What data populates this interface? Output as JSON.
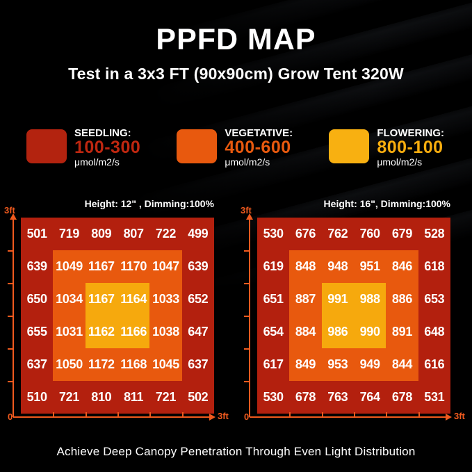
{
  "header": {
    "title": "PPFD MAP",
    "subtitle": "Test in a 3x3 FT (90x90cm) Grow Tent 320W"
  },
  "legend": {
    "items": [
      {
        "label": "SEEDLING:",
        "range": "100-300",
        "unit": "μmol/m2/s",
        "color": "#b3230f",
        "range_color": "#bf2710"
      },
      {
        "label": "VEGETATIVE:",
        "range": "400-600",
        "unit": "μmol/m2/s",
        "color": "#e8590e",
        "range_color": "#e8590e"
      },
      {
        "label": "FLOWERING:",
        "range": "800-100",
        "unit": "μmol/m2/s",
        "color": "#f8b011",
        "range_color": "#f8ad0e"
      }
    ]
  },
  "chart_data": [
    {
      "type": "heatmap",
      "title": "Height: 12\" , Dimming:100%",
      "x_axis": {
        "origin_label": "0",
        "max_label": "3ft",
        "range_ft": [
          0,
          3
        ]
      },
      "y_axis": {
        "max_label": "3ft",
        "range_ft": [
          0,
          3
        ]
      },
      "unit": "μmol/m2/s",
      "rows": 6,
      "cols": 6,
      "values": [
        [
          501,
          719,
          809,
          807,
          722,
          499
        ],
        [
          639,
          1049,
          1167,
          1170,
          1047,
          639
        ],
        [
          650,
          1034,
          1167,
          1164,
          1033,
          652
        ],
        [
          655,
          1031,
          1162,
          1166,
          1038,
          647
        ],
        [
          637,
          1050,
          1172,
          1168,
          1045,
          637
        ],
        [
          510,
          721,
          810,
          811,
          721,
          502
        ]
      ],
      "zones": {
        "outer_color": "#b3200e",
        "mid_color": "#e8590e",
        "center_color": "#f6a90d"
      }
    },
    {
      "type": "heatmap",
      "title": "Height: 16\", Dimming:100%",
      "x_axis": {
        "origin_label": "0",
        "max_label": "3ft",
        "range_ft": [
          0,
          3
        ]
      },
      "y_axis": {
        "max_label": "3ft",
        "range_ft": [
          0,
          3
        ]
      },
      "unit": "μmol/m2/s",
      "rows": 6,
      "cols": 6,
      "values": [
        [
          530,
          676,
          762,
          760,
          679,
          528
        ],
        [
          619,
          848,
          948,
          951,
          846,
          618
        ],
        [
          651,
          887,
          991,
          988,
          886,
          653
        ],
        [
          654,
          884,
          986,
          990,
          891,
          648
        ],
        [
          617,
          849,
          953,
          949,
          844,
          616
        ],
        [
          530,
          678,
          763,
          764,
          678,
          531
        ]
      ],
      "zones": {
        "outer_color": "#b3200e",
        "mid_color": "#e8590e",
        "center_color": "#f6a90d"
      }
    }
  ],
  "footer": {
    "caption": "Achieve Deep Canopy Penetration Through Even Light Distribution"
  },
  "colors": {
    "axis_accent": "#f05a1e"
  }
}
